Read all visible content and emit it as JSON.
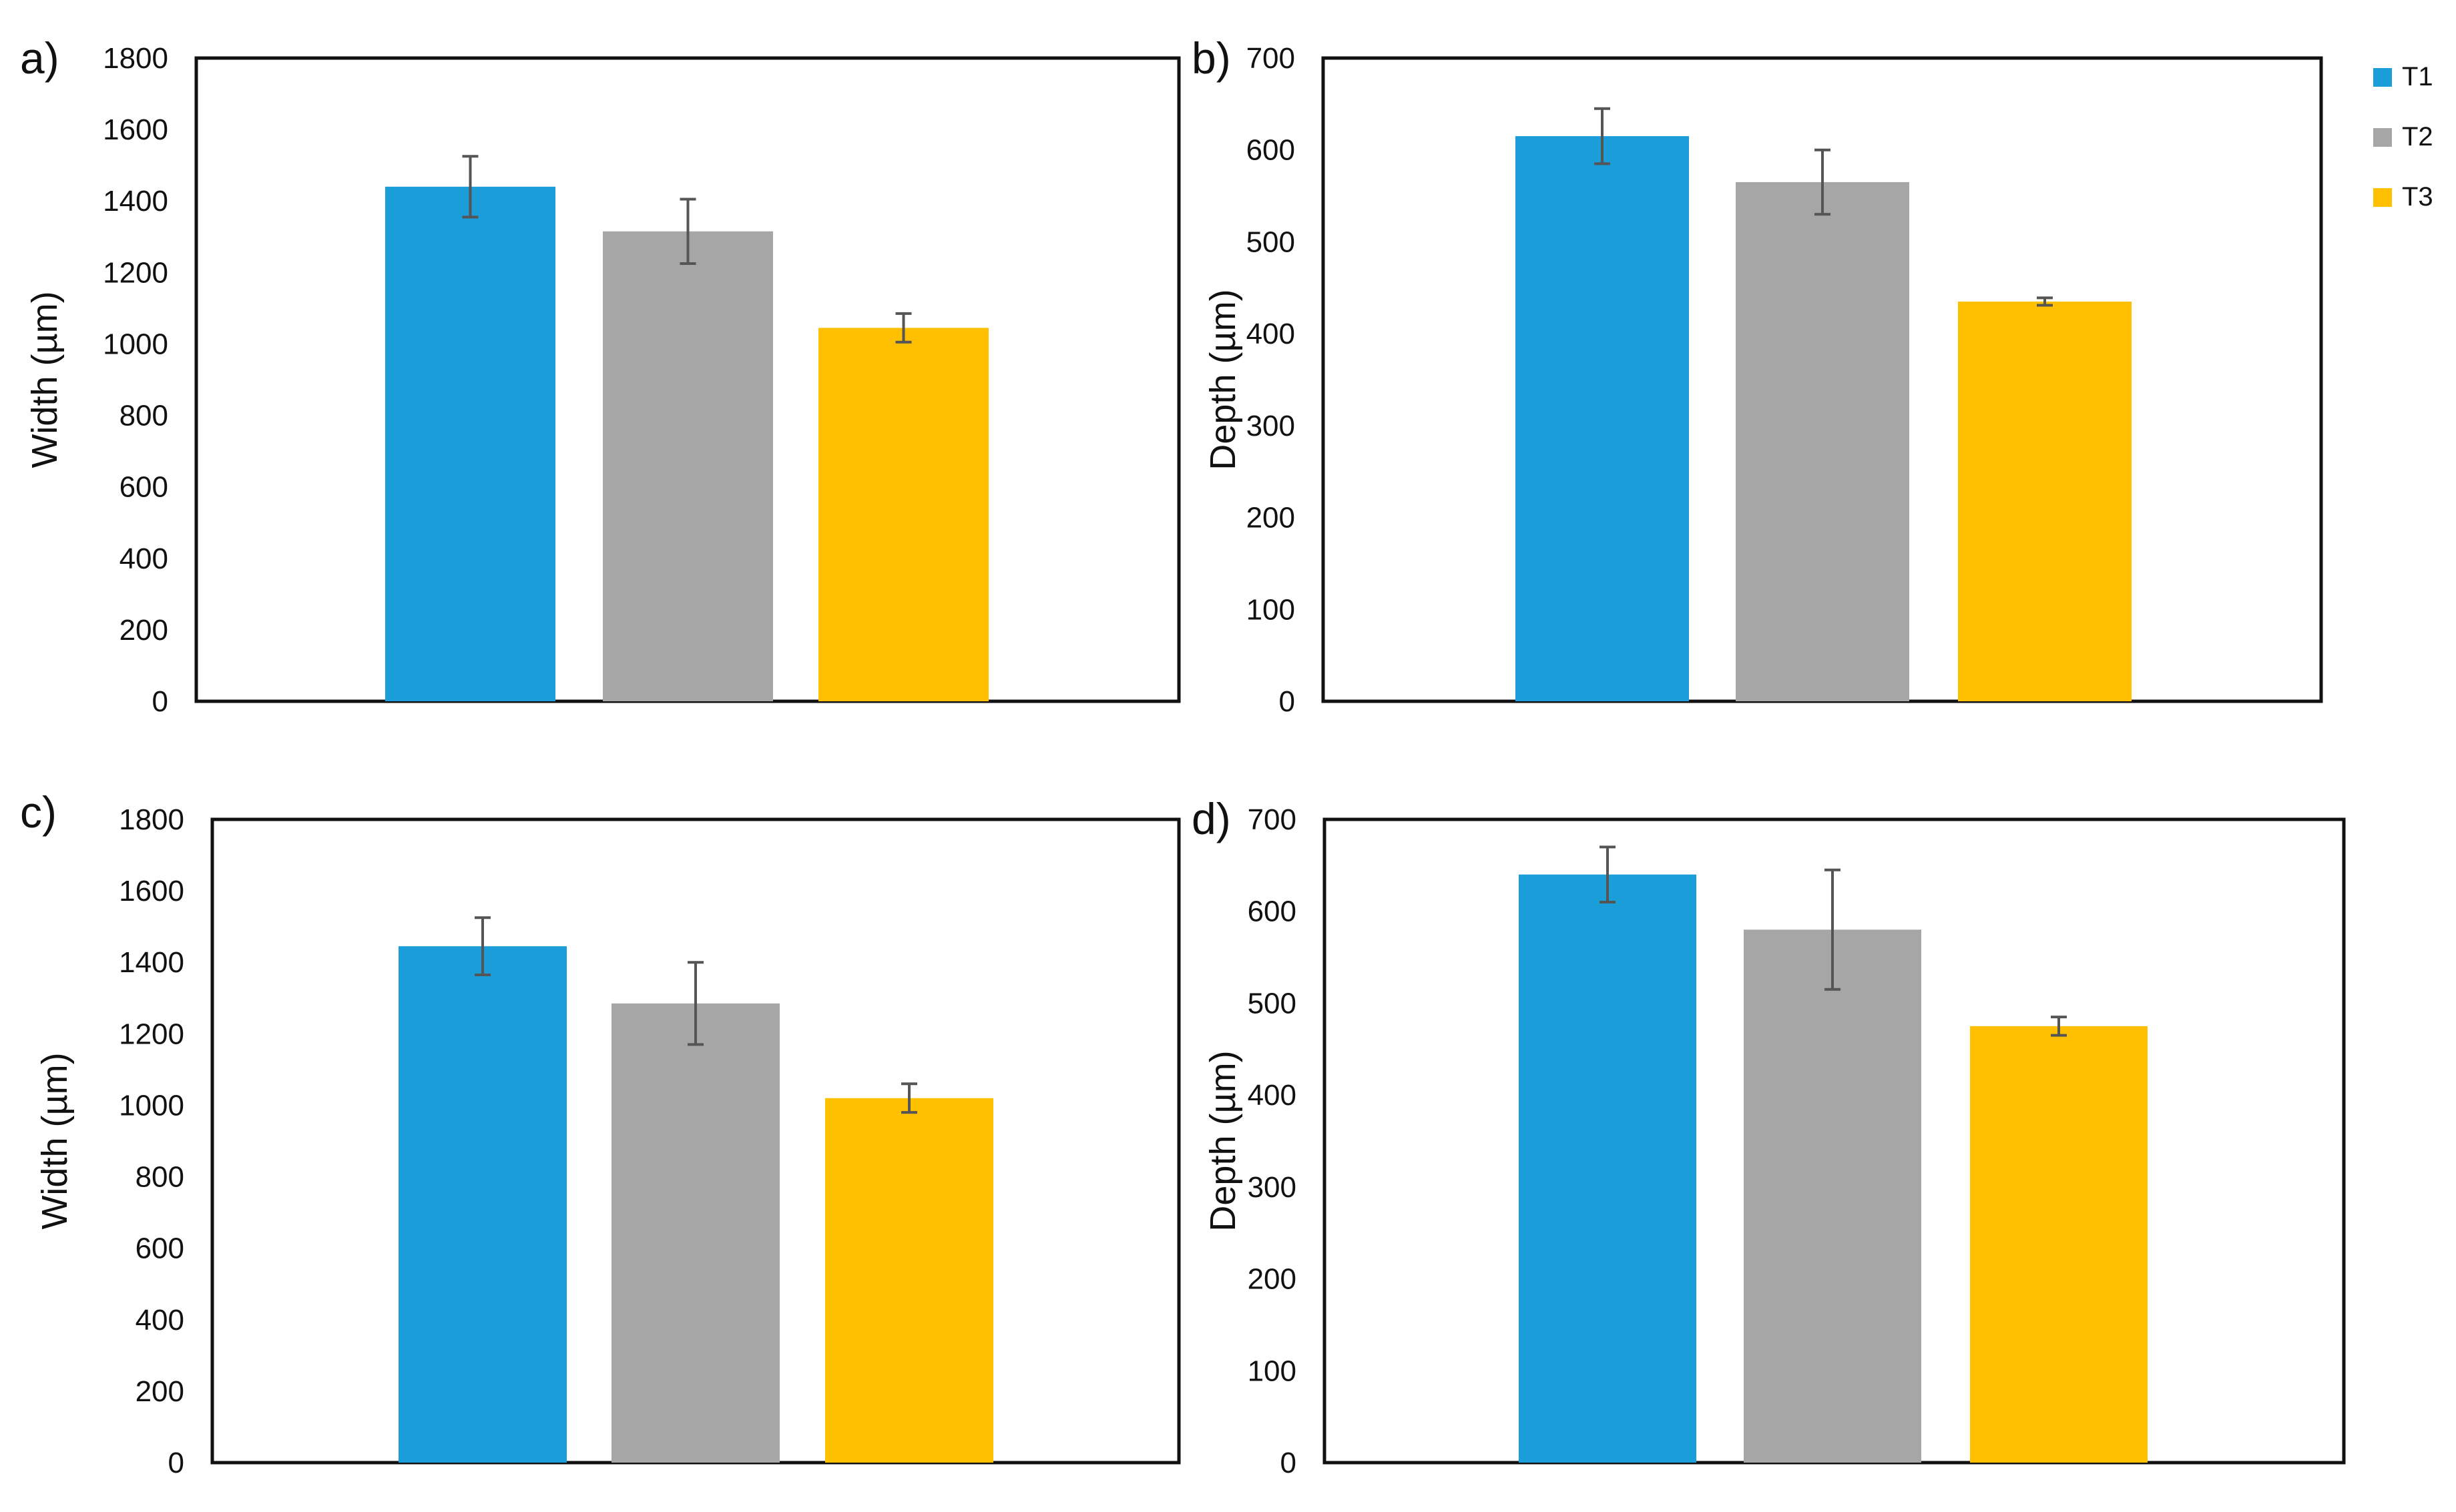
{
  "legend": [
    {
      "name": "T1",
      "color": "#1b9dd9"
    },
    {
      "name": "T2",
      "color": "#a6a6a6"
    },
    {
      "name": "T3",
      "color": "#fec000"
    }
  ],
  "chart_data": [
    {
      "panel": "a)",
      "type": "bar",
      "categories": [
        "T1",
        "T2",
        "T3"
      ],
      "values": [
        1440,
        1315,
        1045
      ],
      "errors": [
        85,
        90,
        40
      ],
      "ylabel": "Width (µm)",
      "xlabel": "",
      "ylim": [
        0,
        1800
      ],
      "yticks": [
        0,
        200,
        400,
        600,
        800,
        1000,
        1200,
        1400,
        1600,
        1800
      ],
      "grid": false
    },
    {
      "panel": "b)",
      "type": "bar",
      "categories": [
        "T1",
        "T2",
        "T3"
      ],
      "values": [
        615,
        565,
        435
      ],
      "errors": [
        30,
        35,
        4
      ],
      "ylabel": "Depth (µm)",
      "xlabel": "",
      "ylim": [
        0,
        700
      ],
      "yticks": [
        0,
        100,
        200,
        300,
        400,
        500,
        600,
        700
      ],
      "grid": false
    },
    {
      "panel": "c)",
      "type": "bar",
      "categories": [
        "T1",
        "T2",
        "T3"
      ],
      "values": [
        1445,
        1285,
        1020
      ],
      "errors": [
        80,
        115,
        40
      ],
      "ylabel": "Width (µm)",
      "xlabel": "",
      "ylim": [
        0,
        1800
      ],
      "yticks": [
        0,
        200,
        400,
        600,
        800,
        1000,
        1200,
        1400,
        1600,
        1800
      ],
      "grid": false
    },
    {
      "panel": "d)",
      "type": "bar",
      "categories": [
        "T1",
        "T2",
        "T3"
      ],
      "values": [
        640,
        580,
        475
      ],
      "errors": [
        30,
        65,
        10
      ],
      "ylabel": "Depth (µm)",
      "xlabel": "",
      "ylim": [
        0,
        700
      ],
      "yticks": [
        0,
        100,
        200,
        300,
        400,
        500,
        600,
        700
      ],
      "grid": false
    }
  ]
}
